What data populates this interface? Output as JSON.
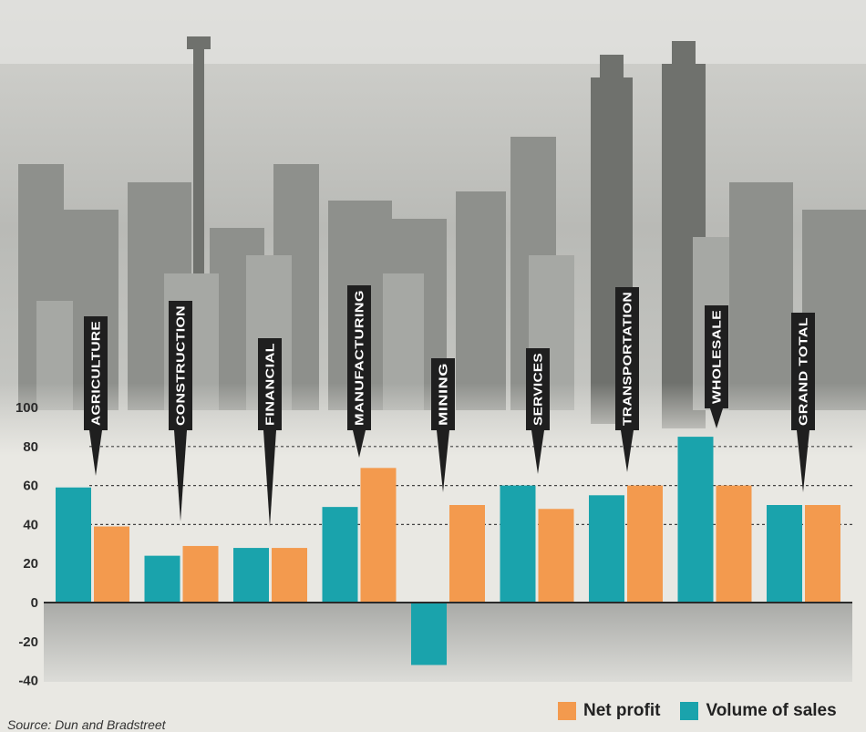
{
  "colors": {
    "net_profit": "#f39a4e",
    "volume_of_sales": "#1aa3ac",
    "pointer": "#1f1f1f",
    "gridline": "#444444"
  },
  "chart_data": {
    "type": "bar",
    "title": "",
    "xlabel": "",
    "ylabel": "",
    "categories": [
      "AGRICULTURE",
      "CONSTRUCTION",
      "FINANCIAL",
      "MANUFACTURING",
      "MINING",
      "SERVICES",
      "TRANSPORTATION",
      "WHOLESALE",
      "GRAND TOTAL"
    ],
    "series": [
      {
        "name": "Volume of sales",
        "color": "#1aa3ac",
        "values": [
          59,
          24,
          28,
          49,
          -32,
          60,
          55,
          85,
          50
        ]
      },
      {
        "name": "Net profit",
        "color": "#f39a4e",
        "values": [
          39,
          29,
          28,
          69,
          50,
          48,
          60,
          60,
          50
        ]
      }
    ],
    "ylim": [
      -40,
      100
    ],
    "yticks": [
      -40,
      -20,
      0,
      20,
      40,
      60,
      80,
      100
    ],
    "grid": "dotted lines at 40, 60 and 80",
    "legend": "bottom-right"
  },
  "legend": {
    "net_profit": "Net profit",
    "volume_of_sales": "Volume of sales"
  },
  "source": "Source: Dun and Bradstreet"
}
